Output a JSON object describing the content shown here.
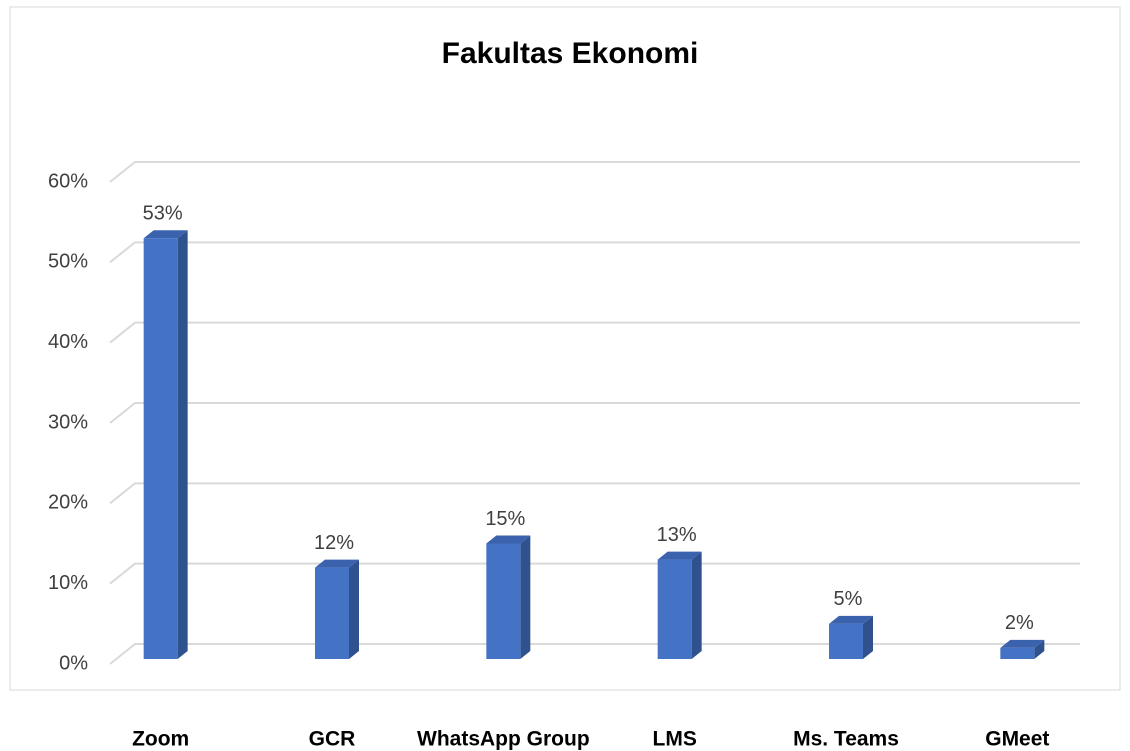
{
  "chart_data": {
    "type": "bar",
    "title": "Fakultas Ekonomi",
    "categories": [
      "Zoom",
      "GCR",
      "WhatsApp Group",
      "LMS",
      "Ms. Teams",
      "GMeet"
    ],
    "values": [
      53,
      12,
      15,
      13,
      5,
      2
    ],
    "value_labels": [
      "53%",
      "12%",
      "15%",
      "13%",
      "5%",
      "2%"
    ],
    "color": "#4472c4",
    "ylim": [
      0,
      60
    ],
    "yticks": [
      {
        "value": 0,
        "label": "0%"
      },
      {
        "value": 10,
        "label": "10%"
      },
      {
        "value": 20,
        "label": "20%"
      },
      {
        "value": 30,
        "label": "30%"
      },
      {
        "value": 40,
        "label": "40%"
      },
      {
        "value": 50,
        "label": "50%"
      },
      {
        "value": 60,
        "label": "60%"
      }
    ],
    "grid": true
  }
}
